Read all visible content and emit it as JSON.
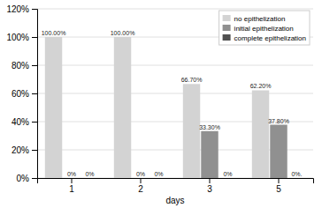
{
  "chart_data": {
    "type": "bar",
    "categories": [
      "1",
      "2",
      "3",
      "5"
    ],
    "series": [
      {
        "name": "no epithelization",
        "color": "#d3d3d3",
        "values": [
          100.0,
          100.0,
          66.7,
          62.2
        ],
        "value_labels": [
          "100.00%",
          "100.00%",
          "66.70%",
          "62.20%"
        ]
      },
      {
        "name": "initial epithelization",
        "color": "#909090",
        "values": [
          0.0,
          0.0,
          33.3,
          37.8
        ],
        "value_labels": [
          "0%",
          "0%",
          "33.30%",
          "37.80%"
        ]
      },
      {
        "name": "complete epithelization",
        "color": "#505050",
        "values": [
          0.0,
          0.0,
          0.0,
          0.0
        ],
        "value_labels": [
          "0%",
          "0%",
          "0%",
          "0%."
        ]
      }
    ],
    "xlabel": "days",
    "ylim": [
      0,
      120
    ],
    "yticks": [
      {
        "value": 0,
        "label": "0%"
      },
      {
        "value": 20,
        "label": "20%"
      },
      {
        "value": 40,
        "label": "40%"
      },
      {
        "value": 60,
        "label": "60%"
      },
      {
        "value": 80,
        "label": "80%"
      },
      {
        "value": 100,
        "label": "100%"
      },
      {
        "value": 120,
        "label": "120%"
      }
    ],
    "grid": true,
    "legend": "upper right",
    "data_labels": true
  }
}
